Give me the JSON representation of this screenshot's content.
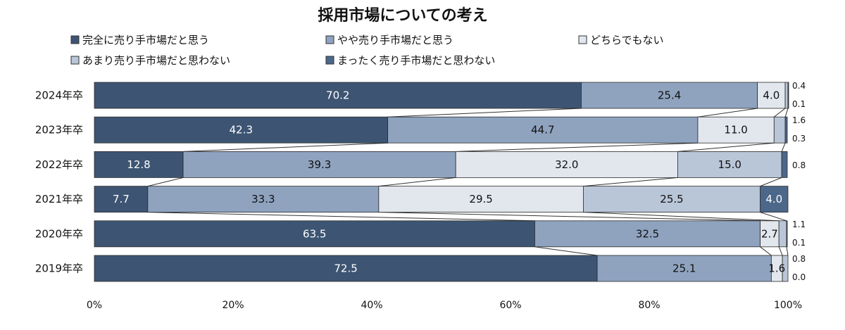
{
  "chart_data": {
    "type": "bar",
    "orientation": "horizontal",
    "stacked": "100%",
    "title": "採用市場についての考え",
    "categories": [
      "2024年卒",
      "2023年卒",
      "2022年卒",
      "2021年卒",
      "2020年卒",
      "2019年卒"
    ],
    "series": [
      {
        "name": "完全に売り手市場だと思う",
        "values": [
          70.2,
          42.3,
          12.8,
          7.7,
          63.5,
          72.5
        ],
        "color": "#3d5573"
      },
      {
        "name": "やや売り手市場だと思う",
        "values": [
          25.4,
          44.7,
          39.3,
          33.3,
          32.5,
          25.1
        ],
        "color": "#8fa3bf"
      },
      {
        "name": "どちらでもない",
        "values": [
          4.0,
          11.0,
          32.0,
          29.5,
          2.7,
          1.6
        ],
        "color": "#e2e7ee"
      },
      {
        "name": "あまり売り手市場だと思わない",
        "values": [
          0.4,
          1.6,
          15.0,
          25.5,
          1.1,
          0.8
        ],
        "color": "#b9c6d7"
      },
      {
        "name": "まったく売り手市場だと思わない",
        "values": [
          0.1,
          0.3,
          0.8,
          4.0,
          0.1,
          0.0
        ],
        "color": "#4b6789"
      }
    ],
    "xlim": [
      0,
      100
    ],
    "x_ticks": [
      "0%",
      "20%",
      "40%",
      "60%",
      "80%",
      "100%"
    ],
    "legend_position": "top",
    "connector_lines": true,
    "grid": false
  }
}
